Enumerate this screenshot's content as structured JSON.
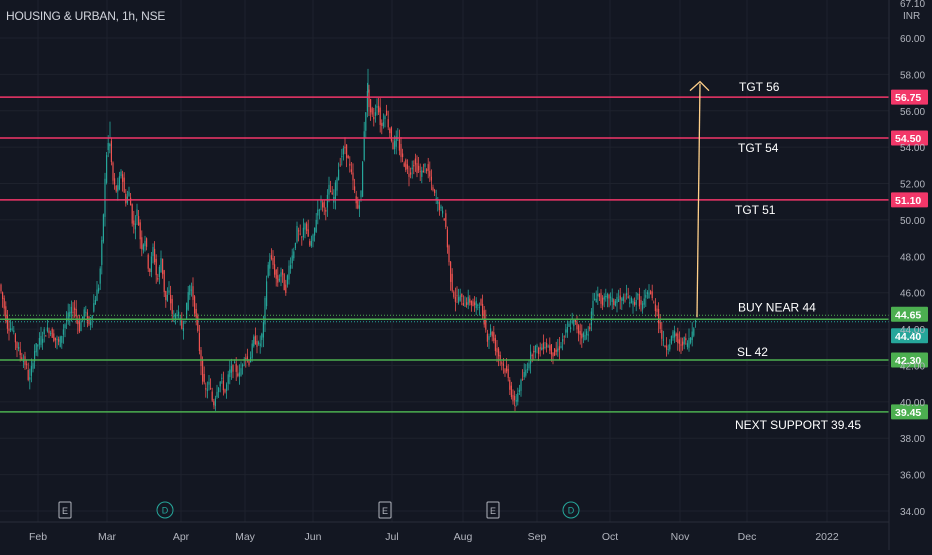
{
  "header": {
    "symbol_title": "HOUSING & URBAN, 1h, NSE"
  },
  "colors": {
    "background": "#131722",
    "grid": "#1e222d",
    "axis_text": "#b2b5be",
    "candle_up": "#26a69a",
    "candle_down": "#ef5350",
    "target_line": "#f23769",
    "support_line": "#4caf50",
    "arrow": "#ffd08a",
    "annotation_text": "#ffffff",
    "event_marker_e": "#b2b5be",
    "event_marker_d": "#26a69a"
  },
  "chart_data": {
    "type": "candlestick",
    "title": "HOUSING & URBAN, 1h, NSE",
    "y_axis": {
      "unit_label": "INR",
      "top_label": "67.10",
      "ticks": [
        60.0,
        58.0,
        56.0,
        54.0,
        52.0,
        50.0,
        48.0,
        46.0,
        44.0,
        42.0,
        40.0,
        38.0,
        36.0,
        34.0
      ],
      "range": [
        33.4,
        62.0
      ]
    },
    "x_axis": {
      "ticks": [
        "Feb",
        "Mar",
        "Apr",
        "May",
        "Jun",
        "Jul",
        "Aug",
        "Sep",
        "Oct",
        "Nov",
        "Dec",
        "2022"
      ]
    },
    "price_path": [
      [
        0,
        46.5
      ],
      [
        4,
        45.5
      ],
      [
        8,
        44.2
      ],
      [
        13,
        44.0
      ],
      [
        18,
        43.0
      ],
      [
        22,
        42.5
      ],
      [
        27,
        42.0
      ],
      [
        30,
        41.0
      ],
      [
        35,
        42.8
      ],
      [
        40,
        43.3
      ],
      [
        45,
        43.8
      ],
      [
        50,
        44.0
      ],
      [
        55,
        43.5
      ],
      [
        60,
        43.2
      ],
      [
        65,
        44.2
      ],
      [
        70,
        44.8
      ],
      [
        75,
        45.2
      ],
      [
        80,
        44.0
      ],
      [
        85,
        45.0
      ],
      [
        90,
        44.2
      ],
      [
        95,
        45.5
      ],
      [
        100,
        46.5
      ],
      [
        103,
        49.0
      ],
      [
        107,
        53.5
      ],
      [
        110,
        54.5
      ],
      [
        114,
        52.0
      ],
      [
        118,
        51.5
      ],
      [
        122,
        52.8
      ],
      [
        126,
        51.0
      ],
      [
        130,
        51.5
      ],
      [
        134,
        49.5
      ],
      [
        138,
        50.5
      ],
      [
        142,
        48.5
      ],
      [
        146,
        49.0
      ],
      [
        150,
        47.0
      ],
      [
        154,
        48.5
      ],
      [
        158,
        46.5
      ],
      [
        162,
        48.0
      ],
      [
        166,
        45.5
      ],
      [
        170,
        46.0
      ],
      [
        174,
        44.5
      ],
      [
        178,
        45.0
      ],
      [
        183,
        44.0
      ],
      [
        187,
        45.0
      ],
      [
        190,
        46.5
      ],
      [
        193,
        46.0
      ],
      [
        197,
        44.5
      ],
      [
        200,
        43.0
      ],
      [
        203,
        41.5
      ],
      [
        206,
        40.5
      ],
      [
        210,
        41.0
      ],
      [
        214,
        39.8
      ],
      [
        218,
        40.8
      ],
      [
        222,
        41.2
      ],
      [
        226,
        40.5
      ],
      [
        230,
        41.6
      ],
      [
        235,
        42.0
      ],
      [
        240,
        41.4
      ],
      [
        245,
        42.6
      ],
      [
        250,
        42.2
      ],
      [
        255,
        43.5
      ],
      [
        260,
        43.0
      ],
      [
        264,
        44.0
      ],
      [
        267,
        46.5
      ],
      [
        270,
        48.0
      ],
      [
        274,
        47.5
      ],
      [
        278,
        46.5
      ],
      [
        282,
        47.2
      ],
      [
        286,
        46.0
      ],
      [
        290,
        47.5
      ],
      [
        294,
        48.2
      ],
      [
        298,
        49.5
      ],
      [
        302,
        48.8
      ],
      [
        306,
        50.0
      ],
      [
        310,
        48.5
      ],
      [
        314,
        49.0
      ],
      [
        318,
        50.5
      ],
      [
        322,
        51.0
      ],
      [
        326,
        50.5
      ],
      [
        330,
        51.8
      ],
      [
        334,
        51.0
      ],
      [
        338,
        52.5
      ],
      [
        342,
        53.5
      ],
      [
        346,
        54.0
      ],
      [
        350,
        53.0
      ],
      [
        354,
        52.0
      ],
      [
        358,
        50.5
      ],
      [
        362,
        51.5
      ],
      [
        365,
        55.0
      ],
      [
        368,
        57.0
      ],
      [
        371,
        56.0
      ],
      [
        374,
        55.5
      ],
      [
        378,
        56.5
      ],
      [
        382,
        55.0
      ],
      [
        386,
        56.0
      ],
      [
        390,
        55.0
      ],
      [
        394,
        54.0
      ],
      [
        398,
        54.5
      ],
      [
        402,
        53.5
      ],
      [
        406,
        53.0
      ],
      [
        410,
        52.5
      ],
      [
        414,
        53.2
      ],
      [
        418,
        52.8
      ],
      [
        422,
        52.5
      ],
      [
        426,
        53.0
      ],
      [
        430,
        52.5
      ],
      [
        434,
        51.5
      ],
      [
        438,
        51.0
      ],
      [
        442,
        50.5
      ],
      [
        446,
        50.0
      ],
      [
        449,
        48.0
      ],
      [
        452,
        46.5
      ],
      [
        456,
        45.6
      ],
      [
        460,
        45.8
      ],
      [
        465,
        45.4
      ],
      [
        470,
        45.6
      ],
      [
        475,
        45.2
      ],
      [
        480,
        45.5
      ],
      [
        485,
        44.5
      ],
      [
        488,
        43.5
      ],
      [
        492,
        44.0
      ],
      [
        496,
        43.0
      ],
      [
        500,
        42.5
      ],
      [
        504,
        42.0
      ],
      [
        508,
        41.5
      ],
      [
        512,
        40.5
      ],
      [
        515,
        39.8
      ],
      [
        519,
        40.6
      ],
      [
        523,
        41.2
      ],
      [
        527,
        41.8
      ],
      [
        531,
        42.5
      ],
      [
        535,
        43.0
      ],
      [
        540,
        42.8
      ],
      [
        545,
        43.2
      ],
      [
        550,
        43.0
      ],
      [
        555,
        42.6
      ],
      [
        560,
        43.0
      ],
      [
        565,
        43.6
      ],
      [
        570,
        44.2
      ],
      [
        575,
        44.4
      ],
      [
        580,
        43.8
      ],
      [
        585,
        43.6
      ],
      [
        590,
        44.0
      ],
      [
        594,
        45.5
      ],
      [
        598,
        46.0
      ],
      [
        602,
        45.5
      ],
      [
        606,
        45.6
      ],
      [
        610,
        45.8
      ],
      [
        614,
        45.4
      ],
      [
        618,
        45.7
      ],
      [
        622,
        45.5
      ],
      [
        626,
        45.8
      ],
      [
        630,
        45.6
      ],
      [
        634,
        45.4
      ],
      [
        638,
        45.8
      ],
      [
        642,
        45.2
      ],
      [
        646,
        45.6
      ],
      [
        650,
        46.2
      ],
      [
        654,
        45.4
      ],
      [
        658,
        45.0
      ],
      [
        661,
        44.0
      ],
      [
        664,
        43.2
      ],
      [
        668,
        43.0
      ],
      [
        672,
        43.5
      ],
      [
        676,
        43.8
      ],
      [
        680,
        43.0
      ],
      [
        684,
        43.4
      ],
      [
        688,
        43.2
      ],
      [
        692,
        43.6
      ],
      [
        696,
        44.65
      ]
    ],
    "horizontal_levels": [
      {
        "price": 56.75,
        "label": "56.75",
        "annotation": "TGT 56",
        "kind": "target"
      },
      {
        "price": 54.5,
        "label": "54.50",
        "annotation": "TGT 54",
        "kind": "target"
      },
      {
        "price": 51.1,
        "label": "51.10",
        "annotation": "TGT 51",
        "kind": "target"
      },
      {
        "price": 44.65,
        "label": "44.65",
        "annotation": "BUY NEAR 44",
        "kind": "buy"
      },
      {
        "price": 44.4,
        "label": "44.40",
        "annotation": "",
        "kind": "last"
      },
      {
        "price": 42.3,
        "label": "42.30",
        "annotation": "SL 42",
        "kind": "stop"
      },
      {
        "price": 39.45,
        "label": "39.45",
        "annotation": "NEXT SUPPORT 39.45",
        "kind": "support"
      }
    ],
    "arrow": {
      "from_price": 44.65,
      "to_price": 57.6
    },
    "events": [
      {
        "type": "E",
        "month_index": 1
      },
      {
        "type": "D",
        "month_index": 2
      },
      {
        "type": "E",
        "month_index": 5
      },
      {
        "type": "E",
        "month_index": 6
      },
      {
        "type": "D",
        "month_index": 7
      }
    ],
    "grid": true
  }
}
